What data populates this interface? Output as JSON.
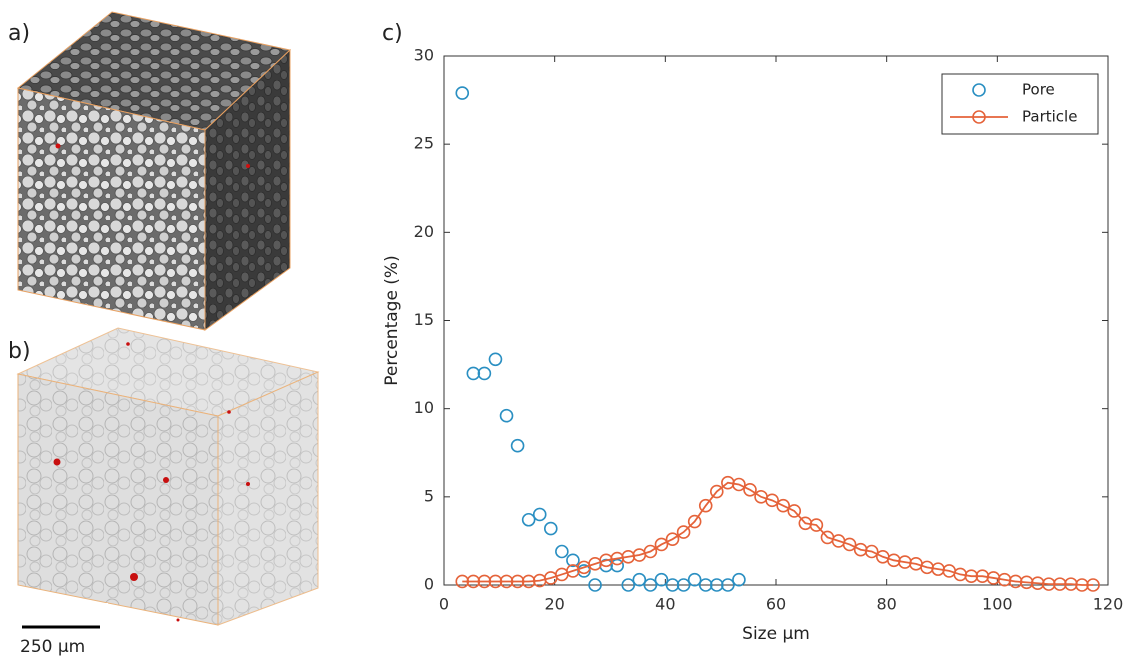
{
  "panel_labels": {
    "a": "a)",
    "b": "b)",
    "c": "c)"
  },
  "scale_bar_label": "250 µm",
  "chart_data": {
    "type": "scatter",
    "x_label": "Size µm",
    "y_label": "Percentage (%)",
    "xlim": [
      0,
      120
    ],
    "xticks": [
      0,
      20,
      40,
      60,
      80,
      100,
      120
    ],
    "ylim": [
      0,
      30
    ],
    "yticks": [
      0,
      5,
      10,
      15,
      20,
      25,
      30
    ],
    "legend": "upper right",
    "series": [
      {
        "name": "Pore",
        "color": "#2a8fc2",
        "line": false,
        "x": [
          3.3,
          5.3,
          7.3,
          9.3,
          11.3,
          13.3,
          15.3,
          17.3,
          19.3,
          21.3,
          23.3,
          25.3,
          27.3,
          29.3,
          31.3,
          33.3,
          35.3,
          37.3,
          39.3,
          41.3,
          43.3,
          45.3,
          47.3,
          49.3,
          51.3,
          53.3
        ],
        "values": [
          27.9,
          12.0,
          12.0,
          12.8,
          9.6,
          7.9,
          3.7,
          4.0,
          3.2,
          1.9,
          1.4,
          0.8,
          0,
          1.1,
          1.1,
          0,
          0.3,
          0,
          0.3,
          0,
          0,
          0.3,
          0,
          0,
          0,
          0.3
        ]
      },
      {
        "name": "Particle",
        "color": "#e5633a",
        "line": true,
        "x": [
          3.3,
          5.3,
          7.3,
          9.3,
          11.3,
          13.3,
          15.3,
          17.3,
          19.3,
          21.3,
          23.3,
          25.3,
          27.3,
          29.3,
          31.3,
          33.3,
          35.3,
          37.3,
          39.3,
          41.3,
          43.3,
          45.3,
          47.3,
          49.3,
          51.3,
          53.3,
          55.3,
          57.3,
          59.3,
          61.3,
          63.3,
          65.3,
          67.3,
          69.3,
          71.3,
          73.3,
          75.3,
          77.3,
          79.3,
          81.3,
          83.3,
          85.3,
          87.3,
          89.3,
          91.3,
          93.3,
          95.3,
          97.3,
          99.3,
          101.3,
          103.3,
          105.3,
          107.3,
          109.3,
          111.3,
          113.3,
          115.3,
          117.3
        ],
        "values": [
          0.2,
          0.2,
          0.2,
          0.2,
          0.2,
          0.2,
          0.2,
          0.25,
          0.4,
          0.6,
          0.8,
          1.0,
          1.2,
          1.4,
          1.5,
          1.6,
          1.7,
          1.9,
          2.3,
          2.6,
          3.0,
          3.6,
          4.5,
          5.3,
          5.8,
          5.7,
          5.4,
          5.0,
          4.8,
          4.5,
          4.2,
          3.5,
          3.4,
          2.7,
          2.5,
          2.3,
          2.0,
          1.9,
          1.6,
          1.4,
          1.3,
          1.2,
          1.0,
          0.9,
          0.8,
          0.6,
          0.5,
          0.5,
          0.4,
          0.3,
          0.2,
          0.15,
          0.1,
          0.05,
          0.05,
          0.05,
          0,
          0
        ]
      }
    ]
  }
}
